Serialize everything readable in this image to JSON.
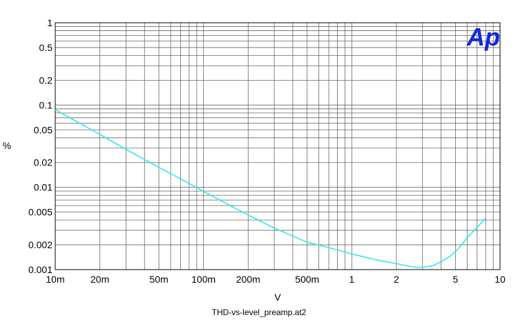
{
  "chart_data": {
    "type": "line",
    "xlabel": "V",
    "ylabel": "%",
    "caption": "THD-vs-level_preamp.at2",
    "logo_text": "Ap",
    "x_scale": "log",
    "y_scale": "log",
    "xlim": [
      0.01,
      10
    ],
    "ylim": [
      0.001,
      1
    ],
    "grid": true,
    "x_ticks": [
      {
        "value": 0.01,
        "label": "10m"
      },
      {
        "value": 0.02,
        "label": "20m"
      },
      {
        "value": 0.05,
        "label": "50m"
      },
      {
        "value": 0.1,
        "label": "100m"
      },
      {
        "value": 0.2,
        "label": "200m"
      },
      {
        "value": 0.5,
        "label": "500m"
      },
      {
        "value": 1,
        "label": "1"
      },
      {
        "value": 2,
        "label": "2"
      },
      {
        "value": 5,
        "label": "5"
      },
      {
        "value": 10,
        "label": "10"
      }
    ],
    "y_ticks": [
      {
        "value": 1,
        "label": "1"
      },
      {
        "value": 0.5,
        "label": "0.5"
      },
      {
        "value": 0.2,
        "label": "0.2"
      },
      {
        "value": 0.1,
        "label": "0.1"
      },
      {
        "value": 0.05,
        "label": "0.05"
      },
      {
        "value": 0.02,
        "label": "0.02"
      },
      {
        "value": 0.01,
        "label": "0.01"
      },
      {
        "value": 0.005,
        "label": "0.005"
      },
      {
        "value": 0.002,
        "label": "0.002"
      },
      {
        "value": 0.001,
        "label": "0.001"
      }
    ],
    "series": [
      {
        "color": "#33e6e6",
        "points": [
          [
            0.01,
            0.088
          ],
          [
            0.02,
            0.044
          ],
          [
            0.03,
            0.029
          ],
          [
            0.05,
            0.0175
          ],
          [
            0.07,
            0.0127
          ],
          [
            0.1,
            0.0089
          ],
          [
            0.2,
            0.0046
          ],
          [
            0.3,
            0.0032
          ],
          [
            0.5,
            0.00215
          ],
          [
            0.7,
            0.00185
          ],
          [
            1.0,
            0.00155
          ],
          [
            1.5,
            0.0013
          ],
          [
            2.0,
            0.00118
          ],
          [
            2.5,
            0.00109
          ],
          [
            2.8,
            0.00106
          ],
          [
            3.2,
            0.00108
          ],
          [
            3.6,
            0.00113
          ],
          [
            4.0,
            0.00125
          ],
          [
            4.6,
            0.00145
          ],
          [
            5.0,
            0.00165
          ],
          [
            5.5,
            0.002
          ],
          [
            6.0,
            0.00245
          ],
          [
            7.0,
            0.00325
          ],
          [
            8.0,
            0.0042
          ]
        ]
      }
    ]
  }
}
